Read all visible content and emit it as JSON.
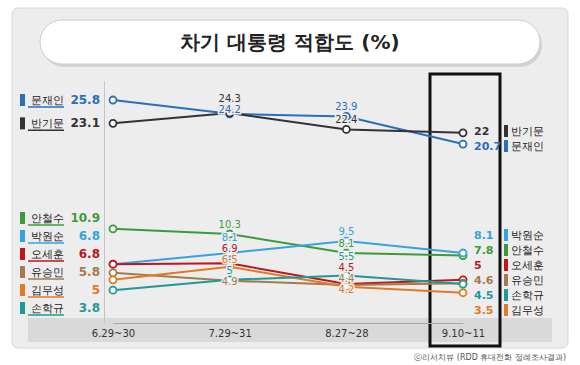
{
  "chart_data": {
    "type": "line",
    "title": "차기 대통령 적합도 (%)",
    "source": "ⓒ리서치뷰 (RDD 휴대전화 정례조사결과)",
    "categories": [
      "6.29~30",
      "7.29~31",
      "8.27~28",
      "9.10~11"
    ],
    "ylim": [
      0,
      28
    ],
    "yticks": [],
    "tick_labels": "x",
    "data_labels": true,
    "marker": "circle",
    "line_style": "solid",
    "series": [
      {
        "name": "문재인",
        "color": "#2a6fba",
        "values": [
          25.8,
          24.2,
          23.9,
          20.7
        ]
      },
      {
        "name": "반기문",
        "color": "#333333",
        "values": [
          23.1,
          24.3,
          22.4,
          22.0
        ]
      },
      {
        "name": "안철수",
        "color": "#3b9b3b",
        "values": [
          10.9,
          10.3,
          8.1,
          7.8
        ]
      },
      {
        "name": "박원순",
        "color": "#35a3dc",
        "values": [
          6.8,
          8.1,
          9.5,
          8.1
        ]
      },
      {
        "name": "오세훈",
        "color": "#c0151d",
        "values": [
          6.8,
          6.9,
          4.5,
          5.0
        ]
      },
      {
        "name": "유승민",
        "color": "#a47a4e",
        "values": [
          5.8,
          4.9,
          4.4,
          4.6
        ]
      },
      {
        "name": "김무성",
        "color": "#e07a26",
        "values": [
          5.0,
          6.5,
          4.2,
          3.5
        ]
      },
      {
        "name": "손학규",
        "color": "#1f9a98",
        "values": [
          3.8,
          5.0,
          5.5,
          4.5
        ]
      }
    ]
  }
}
